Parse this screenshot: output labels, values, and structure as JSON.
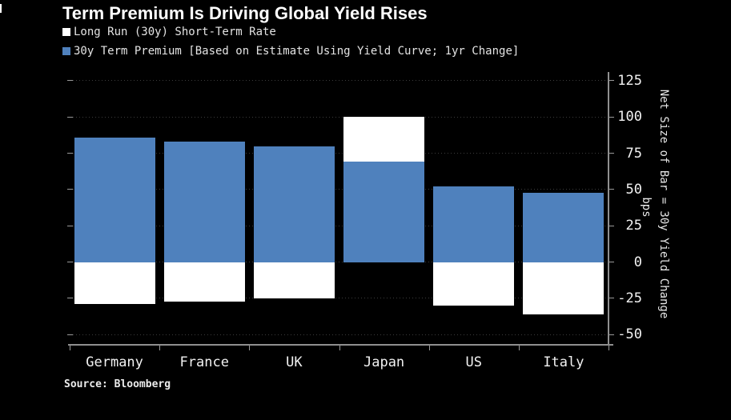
{
  "title": "Term Premium Is Driving Global Yield Rises",
  "legend": [
    {
      "label": "Long Run (30y) Short-Term Rate",
      "color": "#ffffff"
    },
    {
      "label": "30y Term Premium [Based on Estimate Using Yield Curve; 1yr Change]",
      "color": "#4f81bd"
    }
  ],
  "axis": {
    "unit": "bps",
    "right_title": "Net Size of Bar = 30y Yield Change"
  },
  "source": "Source: Bloomberg",
  "colors": {
    "background": "#000000",
    "bar_blue": "#4f81bd",
    "bar_white": "#ffffff",
    "gridline": "#3d3d3d",
    "axis_line": "#8f8f8f",
    "tick_label": "#f2f2f2"
  },
  "chart_data": {
    "type": "bar",
    "stacked": true,
    "title": "Term Premium Is Driving Global Yield Rises",
    "categories": [
      "Germany",
      "France",
      "UK",
      "Japan",
      "US",
      "Italy"
    ],
    "series": [
      {
        "name": "Long Run (30y) Short-Term Rate",
        "color": "#ffffff",
        "values": [
          -29,
          -27,
          -25,
          31,
          -30,
          -36
        ]
      },
      {
        "name": "30y Term Premium [Based on Estimate Using Yield Curve; 1yr Change]",
        "color": "#4f81bd",
        "values": [
          86,
          83,
          80,
          69,
          52,
          48
        ]
      }
    ],
    "net_totals": [
      57,
      56,
      55,
      100,
      22,
      12
    ],
    "yticks": [
      125,
      100,
      75,
      50,
      25,
      0,
      -25,
      -50
    ],
    "ylim": [
      -57,
      131
    ],
    "ylabel": "bps",
    "right_axis_title": "Net Size of Bar = 30y Yield Change",
    "legend_position": "top-left",
    "grid": "dotted horizontal",
    "stack_note": "blue term premium stacks from zero; white short-term rate stacks on top if positive (Japan) or below zero if negative"
  }
}
